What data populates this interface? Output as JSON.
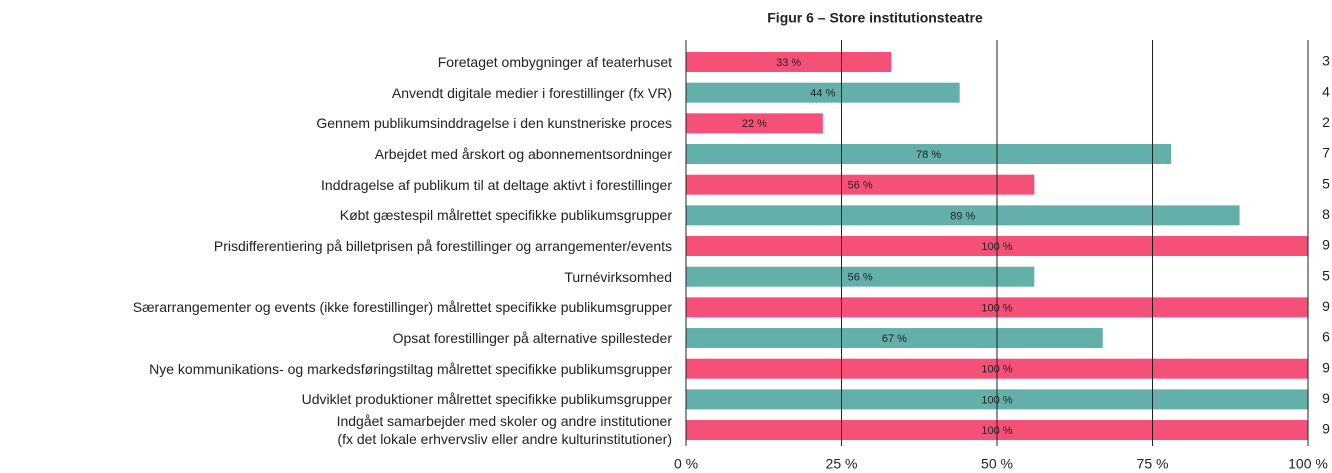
{
  "chart_data": {
    "type": "bar",
    "orientation": "horizontal",
    "title": "Figur 6 – Store institutionsteatre",
    "categories": [
      "Foretaget ombygninger af teaterhuset",
      "Anvendt digitale medier i forestillinger (fx VR)",
      "Gennem publikumsinddragelse i den kunstneriske proces",
      "Arbejdet med årskort og abonnementsordninger",
      "Inddragelse af publikum til at deltage aktivt i forestillinger",
      "Købt gæstespil målrettet specifikke publikumsgrupper",
      "Prisdifferentiering på billetprisen på forestillinger og arrangementer/events",
      "Turnévirksomhed",
      "Særarrangementer og events (ikke forestillinger) målrettet specifikke publikumsgrupper",
      "Opsat forestillinger på alternative spillesteder",
      "Nye kommunikations- og markedsføringstiltag målrettet specifikke publikumsgrupper",
      "Udviklet produktioner målrettet specifikke publikumsgrupper",
      "Indgået samarbejder med skoler og andre institutioner\n(fx det lokale erhvervsliv eller andre kulturinstitutioner)"
    ],
    "values": [
      33,
      44,
      22,
      78,
      56,
      89,
      100,
      56,
      100,
      67,
      100,
      100,
      100
    ],
    "value_labels": [
      "33 %",
      "44 %",
      "22 %",
      "78 %",
      "56 %",
      "89 %",
      "100 %",
      "56 %",
      "100 %",
      "67 %",
      "100 %",
      "100 %",
      "100 %"
    ],
    "counts": [
      3,
      4,
      2,
      7,
      5,
      8,
      9,
      5,
      9,
      6,
      9,
      9,
      9
    ],
    "colors": [
      "#f55078",
      "#63b0aa",
      "#f55078",
      "#63b0aa",
      "#f55078",
      "#63b0aa",
      "#f55078",
      "#63b0aa",
      "#f55078",
      "#63b0aa",
      "#f55078",
      "#63b0aa",
      "#f55078"
    ],
    "xlim": [
      0,
      100
    ],
    "xticks": [
      {
        "value": 0,
        "label": "0 %"
      },
      {
        "value": 25,
        "label": "25 %"
      },
      {
        "value": 50,
        "label": "50 %"
      },
      {
        "value": 75,
        "label": "75 %"
      },
      {
        "value": 100,
        "label": "100 %"
      }
    ],
    "grid": true
  }
}
